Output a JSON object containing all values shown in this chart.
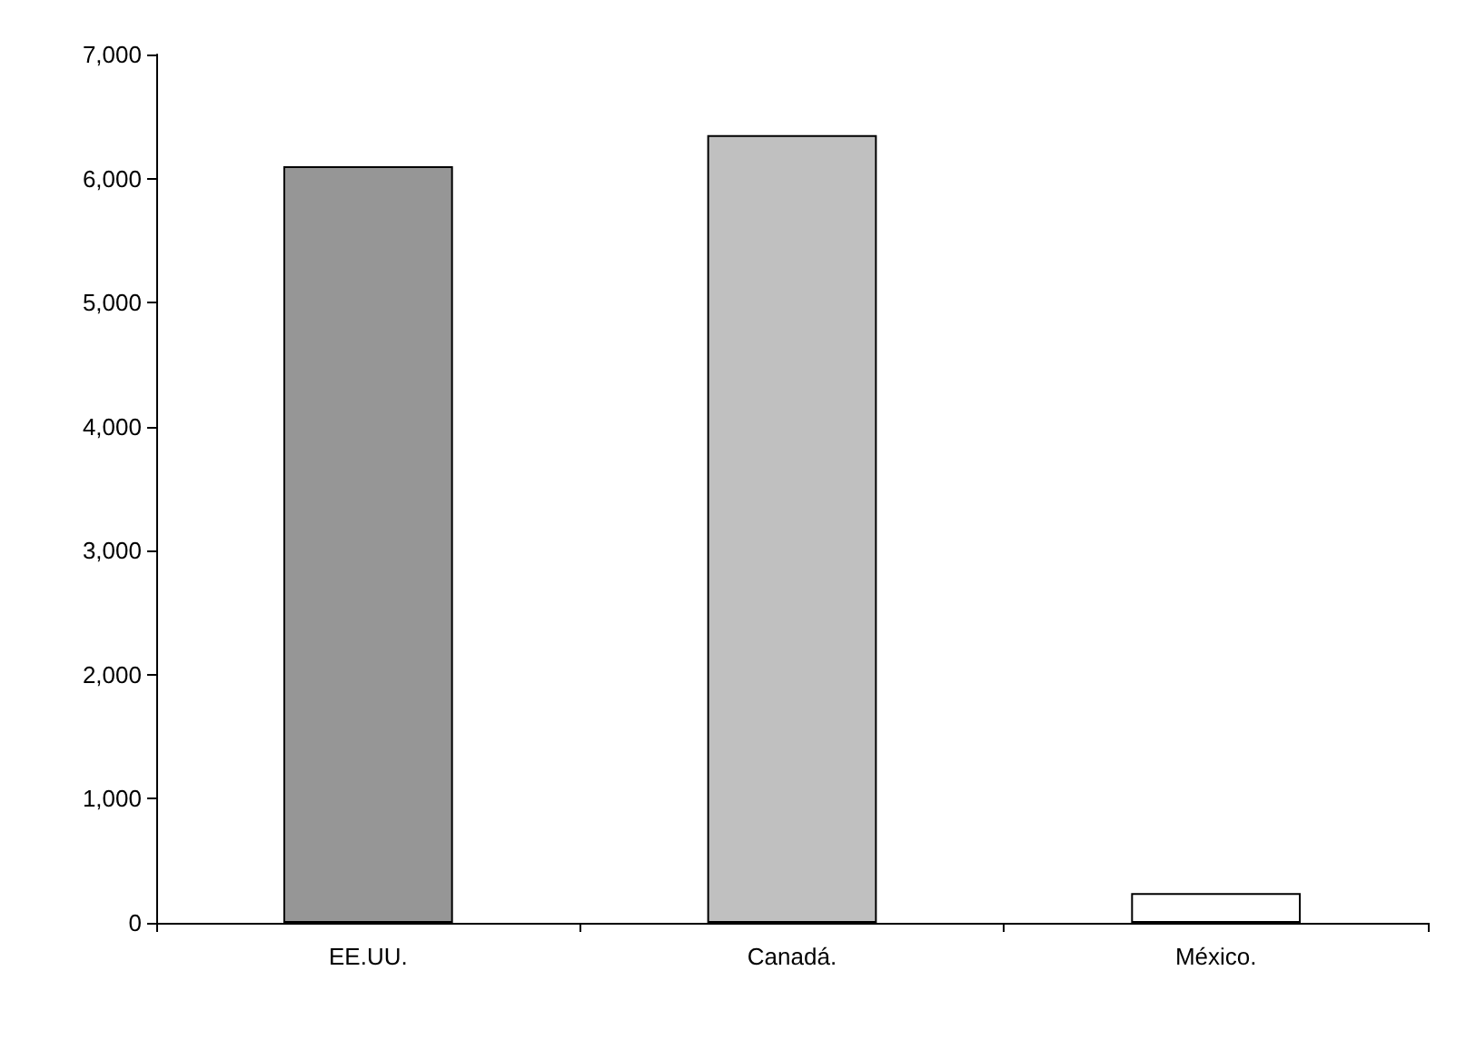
{
  "chart_data": {
    "type": "bar",
    "categories": [
      "EE.UU.",
      "Canadá.",
      "México."
    ],
    "values": [
      6100,
      6350,
      240
    ],
    "colors": [
      "#969696",
      "#c0c0c0",
      "#ffffff"
    ],
    "ylim": [
      0,
      7000
    ],
    "yticks": [
      0,
      {
        "value": 1000,
        "label": "1,000"
      },
      {
        "value": 2000,
        "label": "2,000"
      },
      {
        "value": 3000,
        "label": "3,000"
      },
      {
        "value": 4000,
        "label": "4,000"
      },
      {
        "value": 5000,
        "label": "5,000"
      },
      {
        "value": 6000,
        "label": "6,000"
      },
      {
        "value": 7000,
        "label": "7,000"
      }
    ],
    "grid": false
  }
}
